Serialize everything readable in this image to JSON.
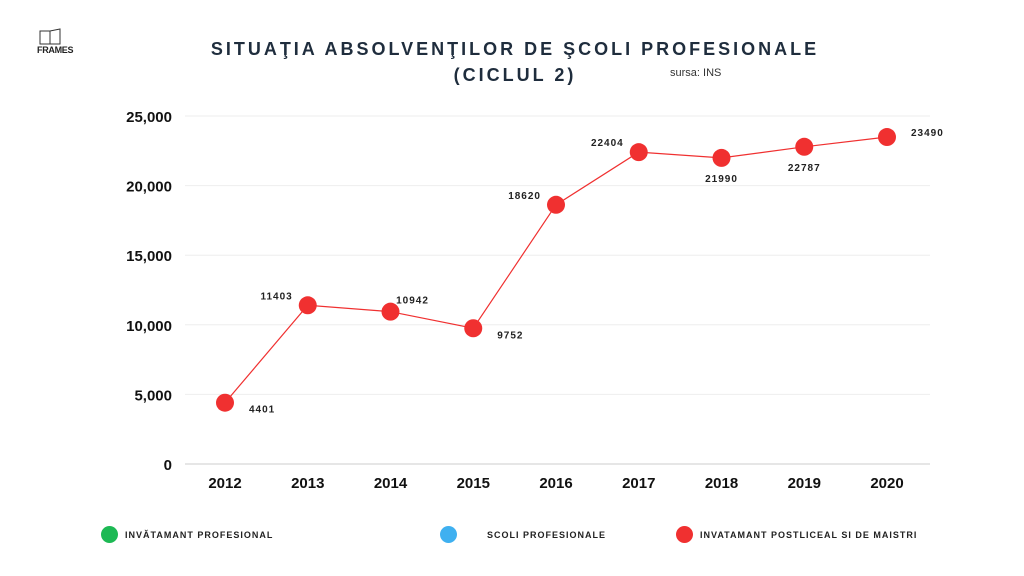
{
  "header": {
    "logo_text": "FRAMES",
    "title_line1": "SITUAŢIA ABSOLVENŢILOR DE ŞCOLI PROFESIONALE",
    "title_line2": "(CICLUL 2)",
    "source": "sursa: INS"
  },
  "legend": [
    {
      "label": "INVĂTAMANT PROFESIONAL",
      "color": "#1db954"
    },
    {
      "label": "SCOLI PROFESIONALE",
      "color": "#3fb0f0"
    },
    {
      "label": "INVATAMANT POSTLICEAL SI DE MAISTRI",
      "color": "#f03030"
    }
  ],
  "chart_data": {
    "type": "line",
    "title": "SITUAŢIA ABSOLVENŢILOR DE ŞCOLI PROFESIONALE (CICLUL 2)",
    "xlabel": "",
    "ylabel": "",
    "categories": [
      "2012",
      "2013",
      "2014",
      "2015",
      "2016",
      "2017",
      "2018",
      "2019",
      "2020"
    ],
    "series": [
      {
        "name": "INVATAMANT POSTLICEAL SI DE MAISTRI",
        "color": "#f03030",
        "values": [
          4401,
          11403,
          10942,
          9752,
          18620,
          22404,
          21990,
          22787,
          23490
        ]
      }
    ],
    "ylim": [
      0,
      25000
    ],
    "yticks": [
      0,
      5000,
      10000,
      15000,
      20000,
      25000
    ],
    "ytick_labels": [
      "0",
      "5,000",
      "10,000",
      "15,000",
      "20,000",
      "25,000"
    ],
    "grid": true,
    "legend_position": "bottom"
  }
}
